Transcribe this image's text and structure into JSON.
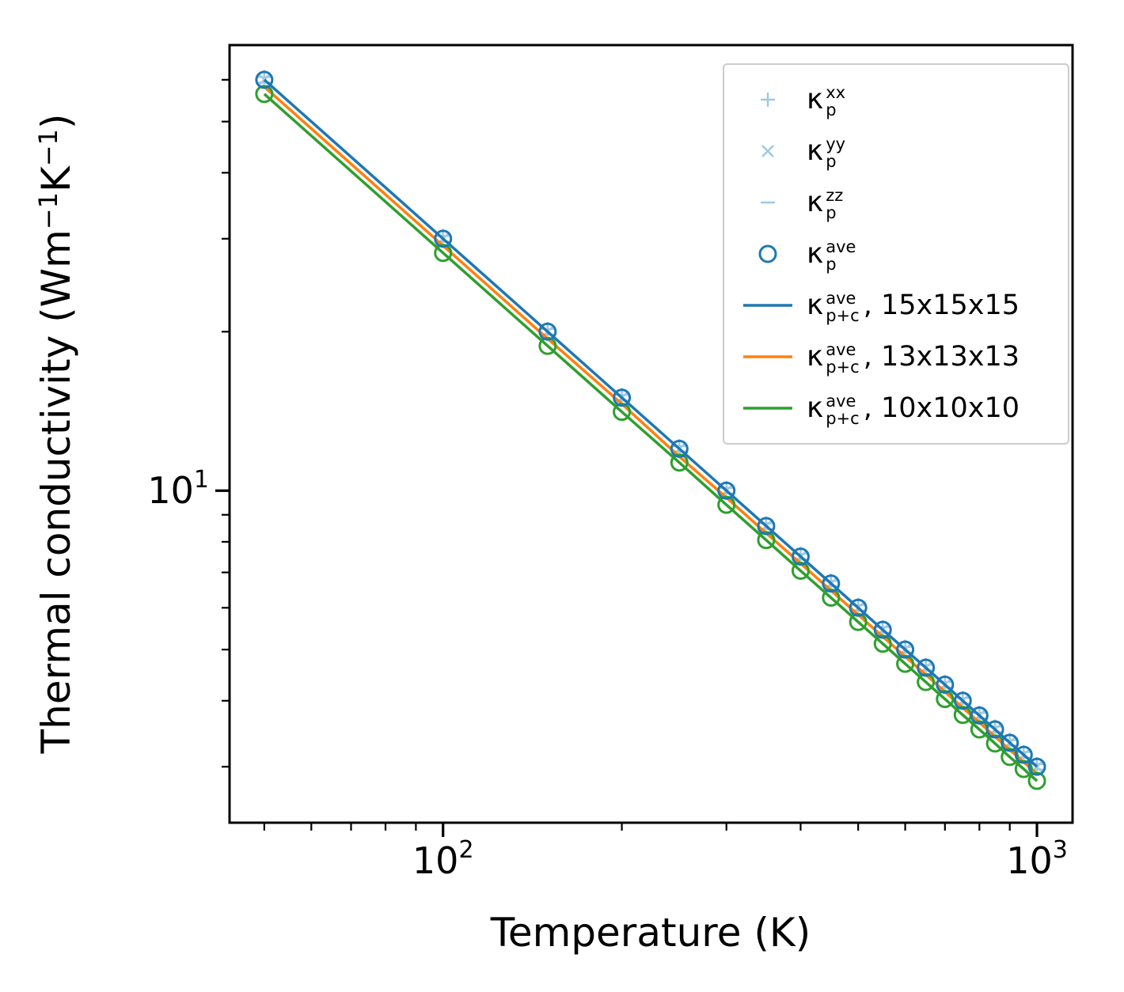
{
  "chart_data": {
    "type": "line",
    "title": "",
    "xlabel": "Temperature (K)",
    "ylabel_parts": [
      {
        "text": "Thermal conductivity (Wm"
      },
      {
        "text": "−1",
        "sup": true
      },
      {
        "text": "K"
      },
      {
        "text": "−1",
        "sup": true
      },
      {
        "text": ")"
      }
    ],
    "xscale": "log",
    "yscale": "log",
    "xlim": [
      43.7,
      1148
    ],
    "ylim": [
      2.35,
      69.8
    ],
    "x_major_ticks": [
      {
        "value": 100,
        "base": "10",
        "exp": "2"
      },
      {
        "value": 1000,
        "base": "10",
        "exp": "3"
      }
    ],
    "x_minor_ticks": [
      50,
      60,
      70,
      80,
      90,
      200,
      300,
      400,
      500,
      600,
      700,
      800,
      900
    ],
    "y_major_ticks": [
      {
        "value": 10,
        "base": "10",
        "exp": "1"
      }
    ],
    "y_minor_ticks": [
      3,
      4,
      5,
      6,
      7,
      8,
      9,
      20,
      30,
      40,
      50,
      60
    ],
    "kappa_symbol": "κ",
    "temperatures": [
      50,
      100,
      150,
      200,
      250,
      300,
      350,
      400,
      450,
      500,
      550,
      600,
      650,
      700,
      750,
      800,
      850,
      900,
      950,
      1000
    ],
    "values": {
      "blue": [
        60.0,
        30.0,
        20.0,
        15.0,
        12.0,
        10.0,
        8.57,
        7.5,
        6.67,
        6.0,
        5.45,
        5.0,
        4.62,
        4.29,
        4.0,
        3.75,
        3.53,
        3.33,
        3.16,
        3.0
      ],
      "orange": [
        58.2,
        29.1,
        19.4,
        14.6,
        11.6,
        9.7,
        8.31,
        7.28,
        6.47,
        5.82,
        5.29,
        4.85,
        4.48,
        4.16,
        3.88,
        3.64,
        3.42,
        3.23,
        3.06,
        2.91
      ],
      "green": [
        56.4,
        28.2,
        18.8,
        14.1,
        11.3,
        9.4,
        8.06,
        7.05,
        6.27,
        5.64,
        5.13,
        4.7,
        4.34,
        4.03,
        3.76,
        3.53,
        3.32,
        3.13,
        2.97,
        2.82
      ]
    },
    "series": [
      {
        "id": "kp-xx",
        "kind": "scatter",
        "marker": "plus",
        "color": "#9ec9e2",
        "values_ref": "blue",
        "scale": 1.012,
        "legend": {
          "sup": "xx",
          "sub": "p",
          "suffix": ""
        }
      },
      {
        "id": "kp-yy",
        "kind": "scatter",
        "marker": "cross",
        "color": "#9ec9e2",
        "values_ref": "blue",
        "scale": 1.0,
        "legend": {
          "sup": "yy",
          "sub": "p",
          "suffix": ""
        }
      },
      {
        "id": "kp-zz",
        "kind": "scatter",
        "marker": "dash",
        "color": "#9ec9e2",
        "values_ref": "blue",
        "scale": 0.988,
        "legend": {
          "sup": "zz",
          "sub": "p",
          "suffix": ""
        }
      },
      {
        "id": "kp-ave",
        "kind": "scatter",
        "marker": "circle",
        "color": "#1f77b4",
        "values_ref": "blue",
        "scale": 1.0,
        "legend": {
          "sup": "ave",
          "sub": "p",
          "suffix": ""
        }
      },
      {
        "id": "kpc-15",
        "kind": "line",
        "color": "#1f77b4",
        "values_ref": "blue",
        "legend": {
          "sup": "ave",
          "sub": "p+c",
          "suffix": ", 15x15x15"
        }
      },
      {
        "id": "kpc-13",
        "kind": "line",
        "color": "#ff7f0e",
        "values_ref": "orange",
        "legend": {
          "sup": "ave",
          "sub": "p+c",
          "suffix": ", 13x13x13"
        }
      },
      {
        "id": "kpc-10",
        "kind": "line",
        "marker": "circle",
        "color": "#2ca02c",
        "values_ref": "green",
        "legend": {
          "sup": "ave",
          "sub": "p+c",
          "suffix": ", 10x10x10"
        }
      }
    ],
    "legend_position": "upper right",
    "grid": false,
    "colors": {
      "blue": "#1f77b4",
      "orange": "#ff7f0e",
      "green": "#2ca02c",
      "light_blue": "#9ec9e2"
    }
  }
}
